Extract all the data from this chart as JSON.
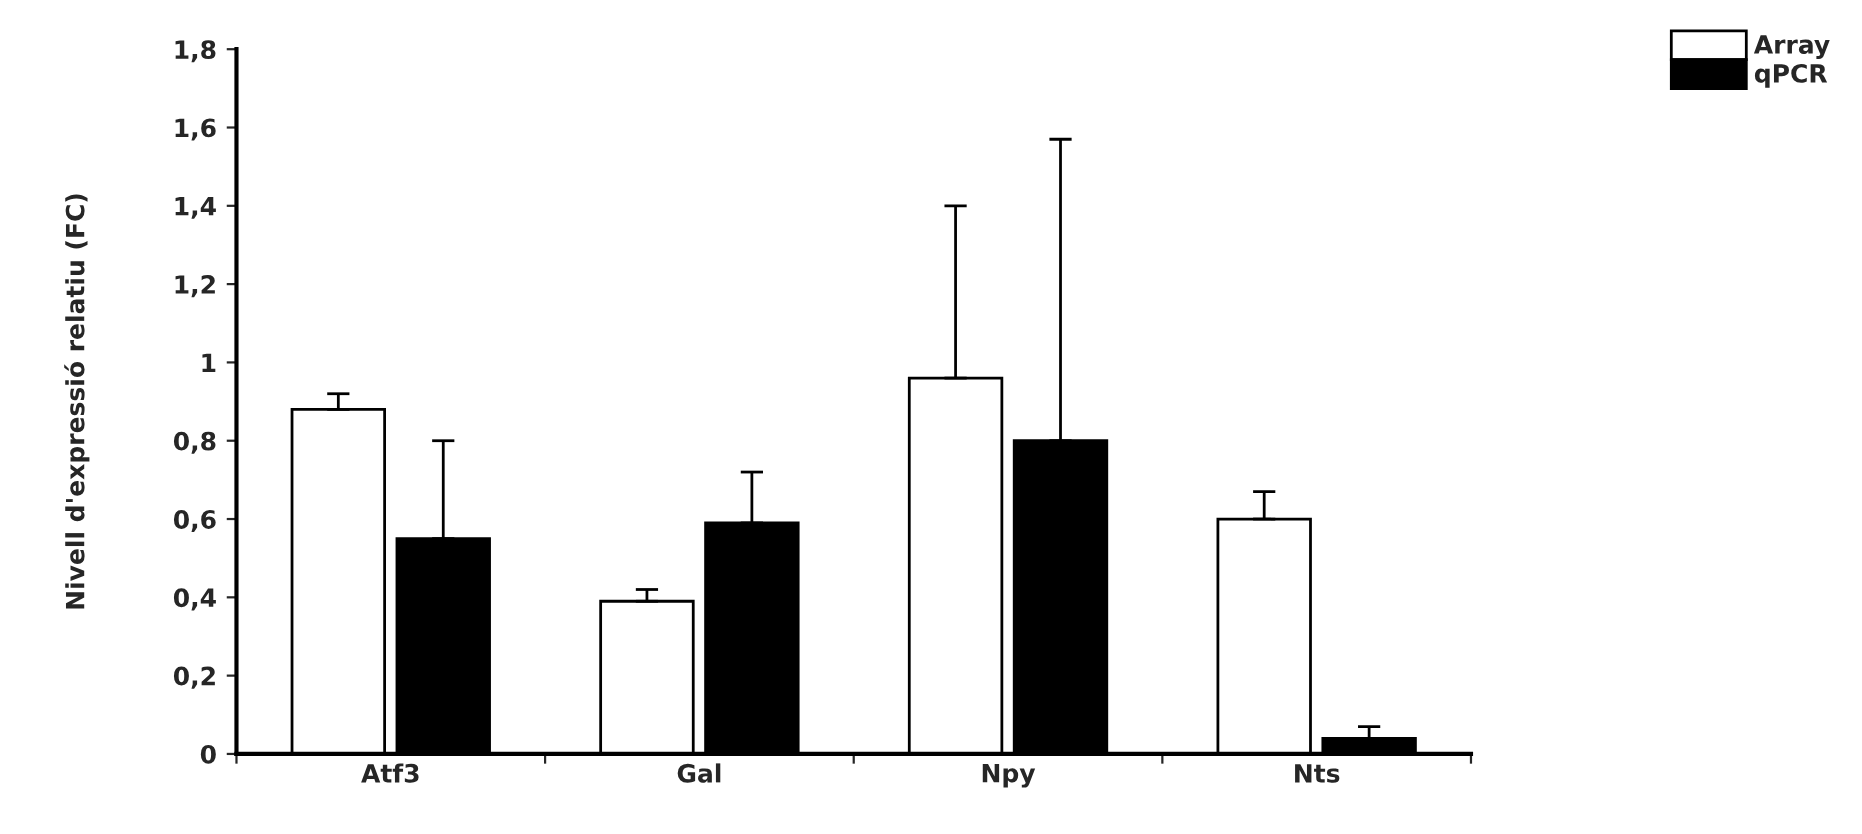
{
  "chart_data": {
    "type": "bar",
    "ylabel": "Nivell d'expressió relatiu (FC)",
    "categories": [
      "Atf3",
      "Gal",
      "Npy",
      "Nts"
    ],
    "series": [
      {
        "name": "Array",
        "color": "#ffffff",
        "values": [
          0.88,
          0.39,
          0.96,
          0.6
        ],
        "errors": [
          [
            0.88,
            0.92
          ],
          [
            0.39,
            0.42
          ],
          [
            0.96,
            1.4
          ],
          [
            0.6,
            0.67
          ]
        ]
      },
      {
        "name": "qPCR",
        "color": "#000000",
        "values": [
          0.55,
          0.59,
          0.8,
          0.04
        ],
        "errors": [
          [
            0.55,
            0.8
          ],
          [
            0.59,
            0.72
          ],
          [
            0.8,
            1.57
          ],
          [
            0.04,
            0.07
          ]
        ]
      }
    ],
    "ylim": [
      0,
      1.8
    ],
    "yticks": [
      0,
      {
        "value": 0.2,
        "label": "0,2"
      },
      {
        "value": 0.4,
        "label": "0,4"
      },
      {
        "value": 0.6,
        "label": "0,6"
      },
      {
        "value": 0.8,
        "label": "0,8"
      },
      1,
      {
        "value": 1.2,
        "label": "1,2"
      },
      {
        "value": 1.4,
        "label": "1,4"
      },
      {
        "value": 1.6,
        "label": "1,6"
      },
      {
        "value": 1.8,
        "label": "1,8"
      }
    ],
    "grid": false,
    "legend": "top right"
  }
}
